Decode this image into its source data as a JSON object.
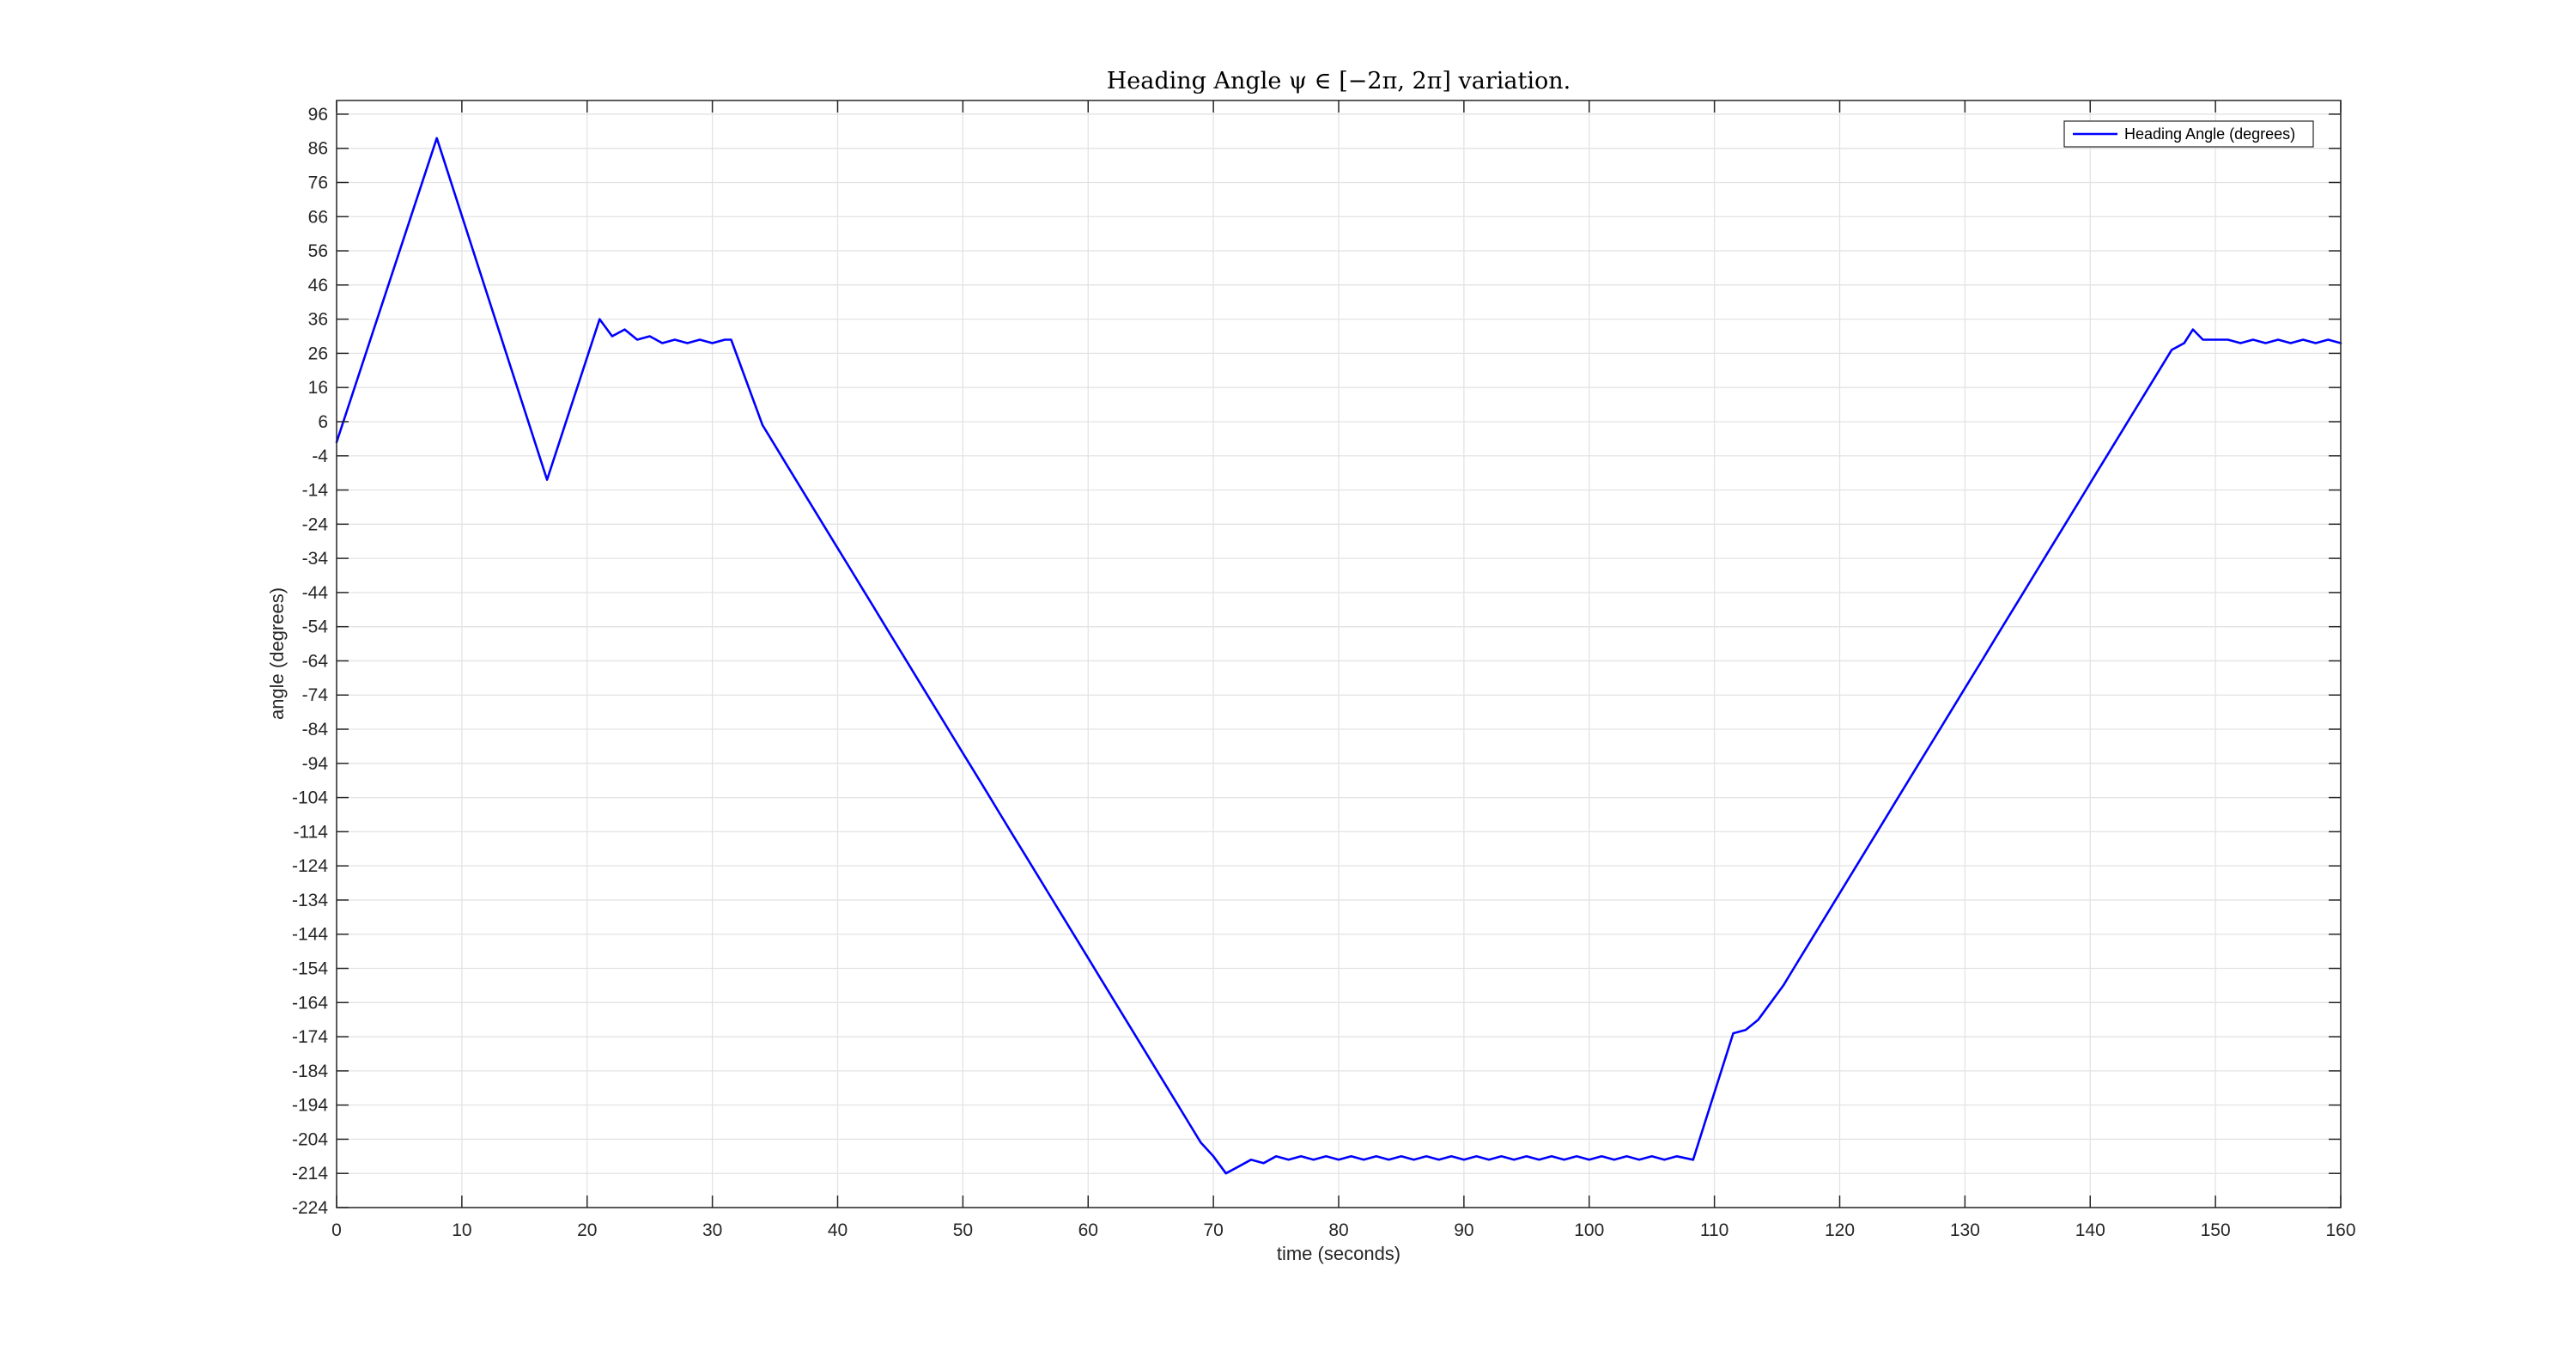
{
  "chart_data": {
    "type": "line",
    "title": "Heading Angle ψ ∈ [−2π, 2π] variation.",
    "xlabel": "time (seconds)",
    "ylabel": "angle (degrees)",
    "xlim": [
      0,
      160
    ],
    "ylim": [
      -224,
      100
    ],
    "xticks": [
      0,
      10,
      20,
      30,
      40,
      50,
      60,
      70,
      80,
      90,
      100,
      110,
      120,
      130,
      140,
      150,
      160
    ],
    "yticks": [
      96,
      86,
      76,
      66,
      56,
      46,
      36,
      26,
      16,
      6,
      -4,
      -14,
      -24,
      -34,
      -44,
      -54,
      -64,
      -74,
      -84,
      -94,
      -104,
      -114,
      -124,
      -134,
      -144,
      -154,
      -164,
      -174,
      -184,
      -194,
      -204,
      -214,
      -224
    ],
    "grid": true,
    "legend_position": "top-right",
    "series": [
      {
        "name": "Heading Angle (degrees)",
        "color": "#0000ff",
        "x": [
          0,
          8,
          16.8,
          21,
          22,
          23,
          24,
          25,
          26,
          27,
          28,
          29,
          30,
          31,
          31.5,
          34,
          35,
          36,
          37,
          38,
          39,
          40,
          41,
          42,
          43,
          44,
          45,
          46,
          47,
          48,
          49,
          50,
          51,
          52,
          53,
          54,
          55,
          56,
          57,
          58,
          59,
          60,
          61,
          62,
          63,
          64,
          65,
          66,
          67,
          68,
          69,
          70,
          71,
          72,
          73,
          74,
          75,
          76,
          77,
          78,
          79,
          80,
          81,
          82,
          83,
          84,
          85,
          86,
          87,
          88,
          89,
          90,
          91,
          92,
          93,
          94,
          95,
          96,
          97,
          98,
          99,
          100,
          101,
          102,
          103,
          104,
          105,
          106,
          107,
          108.3,
          111.5,
          112.5,
          113.5,
          114.5,
          115.5,
          116.5,
          117.5,
          118.5,
          119.5,
          120.5,
          121.5,
          122.5,
          123.5,
          124.5,
          125.5,
          126.5,
          127.5,
          128.5,
          129.5,
          130.5,
          131.5,
          132.5,
          133.5,
          134.5,
          135.5,
          136.5,
          137.5,
          138.5,
          139.5,
          140.5,
          141.5,
          142.5,
          143.5,
          144.5,
          145.5,
          146.5,
          147.5,
          148.2,
          149,
          150,
          151,
          152,
          153,
          154,
          155,
          156,
          157,
          158,
          159,
          160
        ],
        "y": [
          0,
          89,
          -11,
          36,
          31,
          33,
          30,
          31,
          29,
          30,
          29,
          30,
          29,
          30,
          30,
          5,
          -1,
          -7,
          -13,
          -19,
          -25,
          -31,
          -37,
          -43,
          -49,
          -55,
          -61,
          -67,
          -73,
          -79,
          -85,
          -91,
          -97,
          -103,
          -109,
          -115,
          -121,
          -127,
          -133,
          -139,
          -145,
          -151,
          -157,
          -163,
          -169,
          -175,
          -181,
          -187,
          -193,
          -199,
          -205,
          -209,
          -214,
          -212,
          -210,
          -211,
          -209,
          -210,
          -209,
          -210,
          -209,
          -210,
          -209,
          -210,
          -209,
          -210,
          -209,
          -210,
          -209,
          -210,
          -209,
          -210,
          -209,
          -210,
          -209,
          -210,
          -209,
          -210,
          -209,
          -210,
          -209,
          -210,
          -209,
          -210,
          -209,
          -210,
          -209,
          -210,
          -209,
          -210,
          -173,
          -172,
          -169,
          -164,
          -159,
          -153,
          -147,
          -141,
          -135,
          -129,
          -123,
          -117,
          -111,
          -105,
          -99,
          -93,
          -87,
          -81,
          -75,
          -69,
          -63,
          -57,
          -51,
          -45,
          -39,
          -33,
          -27,
          -21,
          -15,
          -9,
          -3,
          3,
          9,
          15,
          21,
          27,
          29,
          33,
          30,
          30,
          30,
          29,
          30,
          29,
          30,
          29,
          30,
          29,
          30,
          29
        ]
      }
    ]
  }
}
